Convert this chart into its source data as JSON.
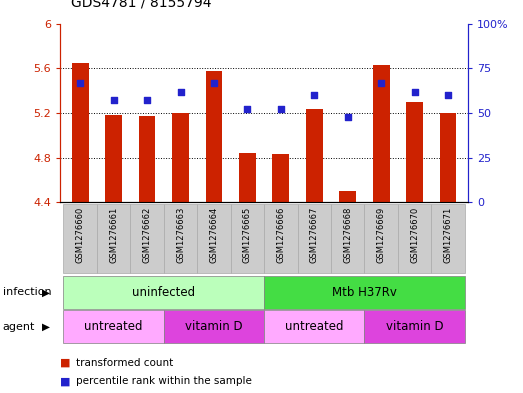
{
  "title": "GDS4781 / 8155794",
  "samples": [
    "GSM1276660",
    "GSM1276661",
    "GSM1276662",
    "GSM1276663",
    "GSM1276664",
    "GSM1276665",
    "GSM1276666",
    "GSM1276667",
    "GSM1276668",
    "GSM1276669",
    "GSM1276670",
    "GSM1276671"
  ],
  "transformed_count": [
    5.65,
    5.18,
    5.17,
    5.2,
    5.58,
    4.84,
    4.83,
    5.24,
    4.5,
    5.63,
    5.3,
    5.2
  ],
  "percentile_rank": [
    67,
    57,
    57,
    62,
    67,
    52,
    52,
    60,
    48,
    67,
    62,
    60
  ],
  "ylim_left": [
    4.4,
    6.0
  ],
  "ylim_right": [
    0,
    100
  ],
  "yticks_left": [
    4.4,
    4.8,
    5.2,
    5.6,
    6.0
  ],
  "yticks_right": [
    0,
    25,
    50,
    75,
    100
  ],
  "ytick_labels_left": [
    "4.4",
    "4.8",
    "5.2",
    "5.6",
    "6"
  ],
  "ytick_labels_right": [
    "0",
    "25",
    "50",
    "75",
    "100%"
  ],
  "bar_color": "#cc2200",
  "dot_color": "#2222cc",
  "bar_width": 0.5,
  "infection_groups": [
    {
      "text": "uninfected",
      "start": 0,
      "end": 5,
      "color": "#bbffbb"
    },
    {
      "text": "Mtb H37Rv",
      "start": 6,
      "end": 11,
      "color": "#44dd44"
    }
  ],
  "agent_groups": [
    {
      "text": "untreated",
      "start": 0,
      "end": 2,
      "color": "#ffaaff"
    },
    {
      "text": "vitamin D",
      "start": 3,
      "end": 5,
      "color": "#dd44dd"
    },
    {
      "text": "untreated",
      "start": 6,
      "end": 8,
      "color": "#ffaaff"
    },
    {
      "text": "vitamin D",
      "start": 9,
      "end": 11,
      "color": "#dd44dd"
    }
  ],
  "infection_row_label": "infection",
  "agent_row_label": "agent",
  "legend_items": [
    {
      "label": "transformed count",
      "color": "#cc2200"
    },
    {
      "label": "percentile rank within the sample",
      "color": "#2222cc"
    }
  ],
  "grid_yticks": [
    4.8,
    5.2,
    5.6
  ],
  "sample_box_color": "#cccccc",
  "sample_box_edge": "#aaaaaa"
}
